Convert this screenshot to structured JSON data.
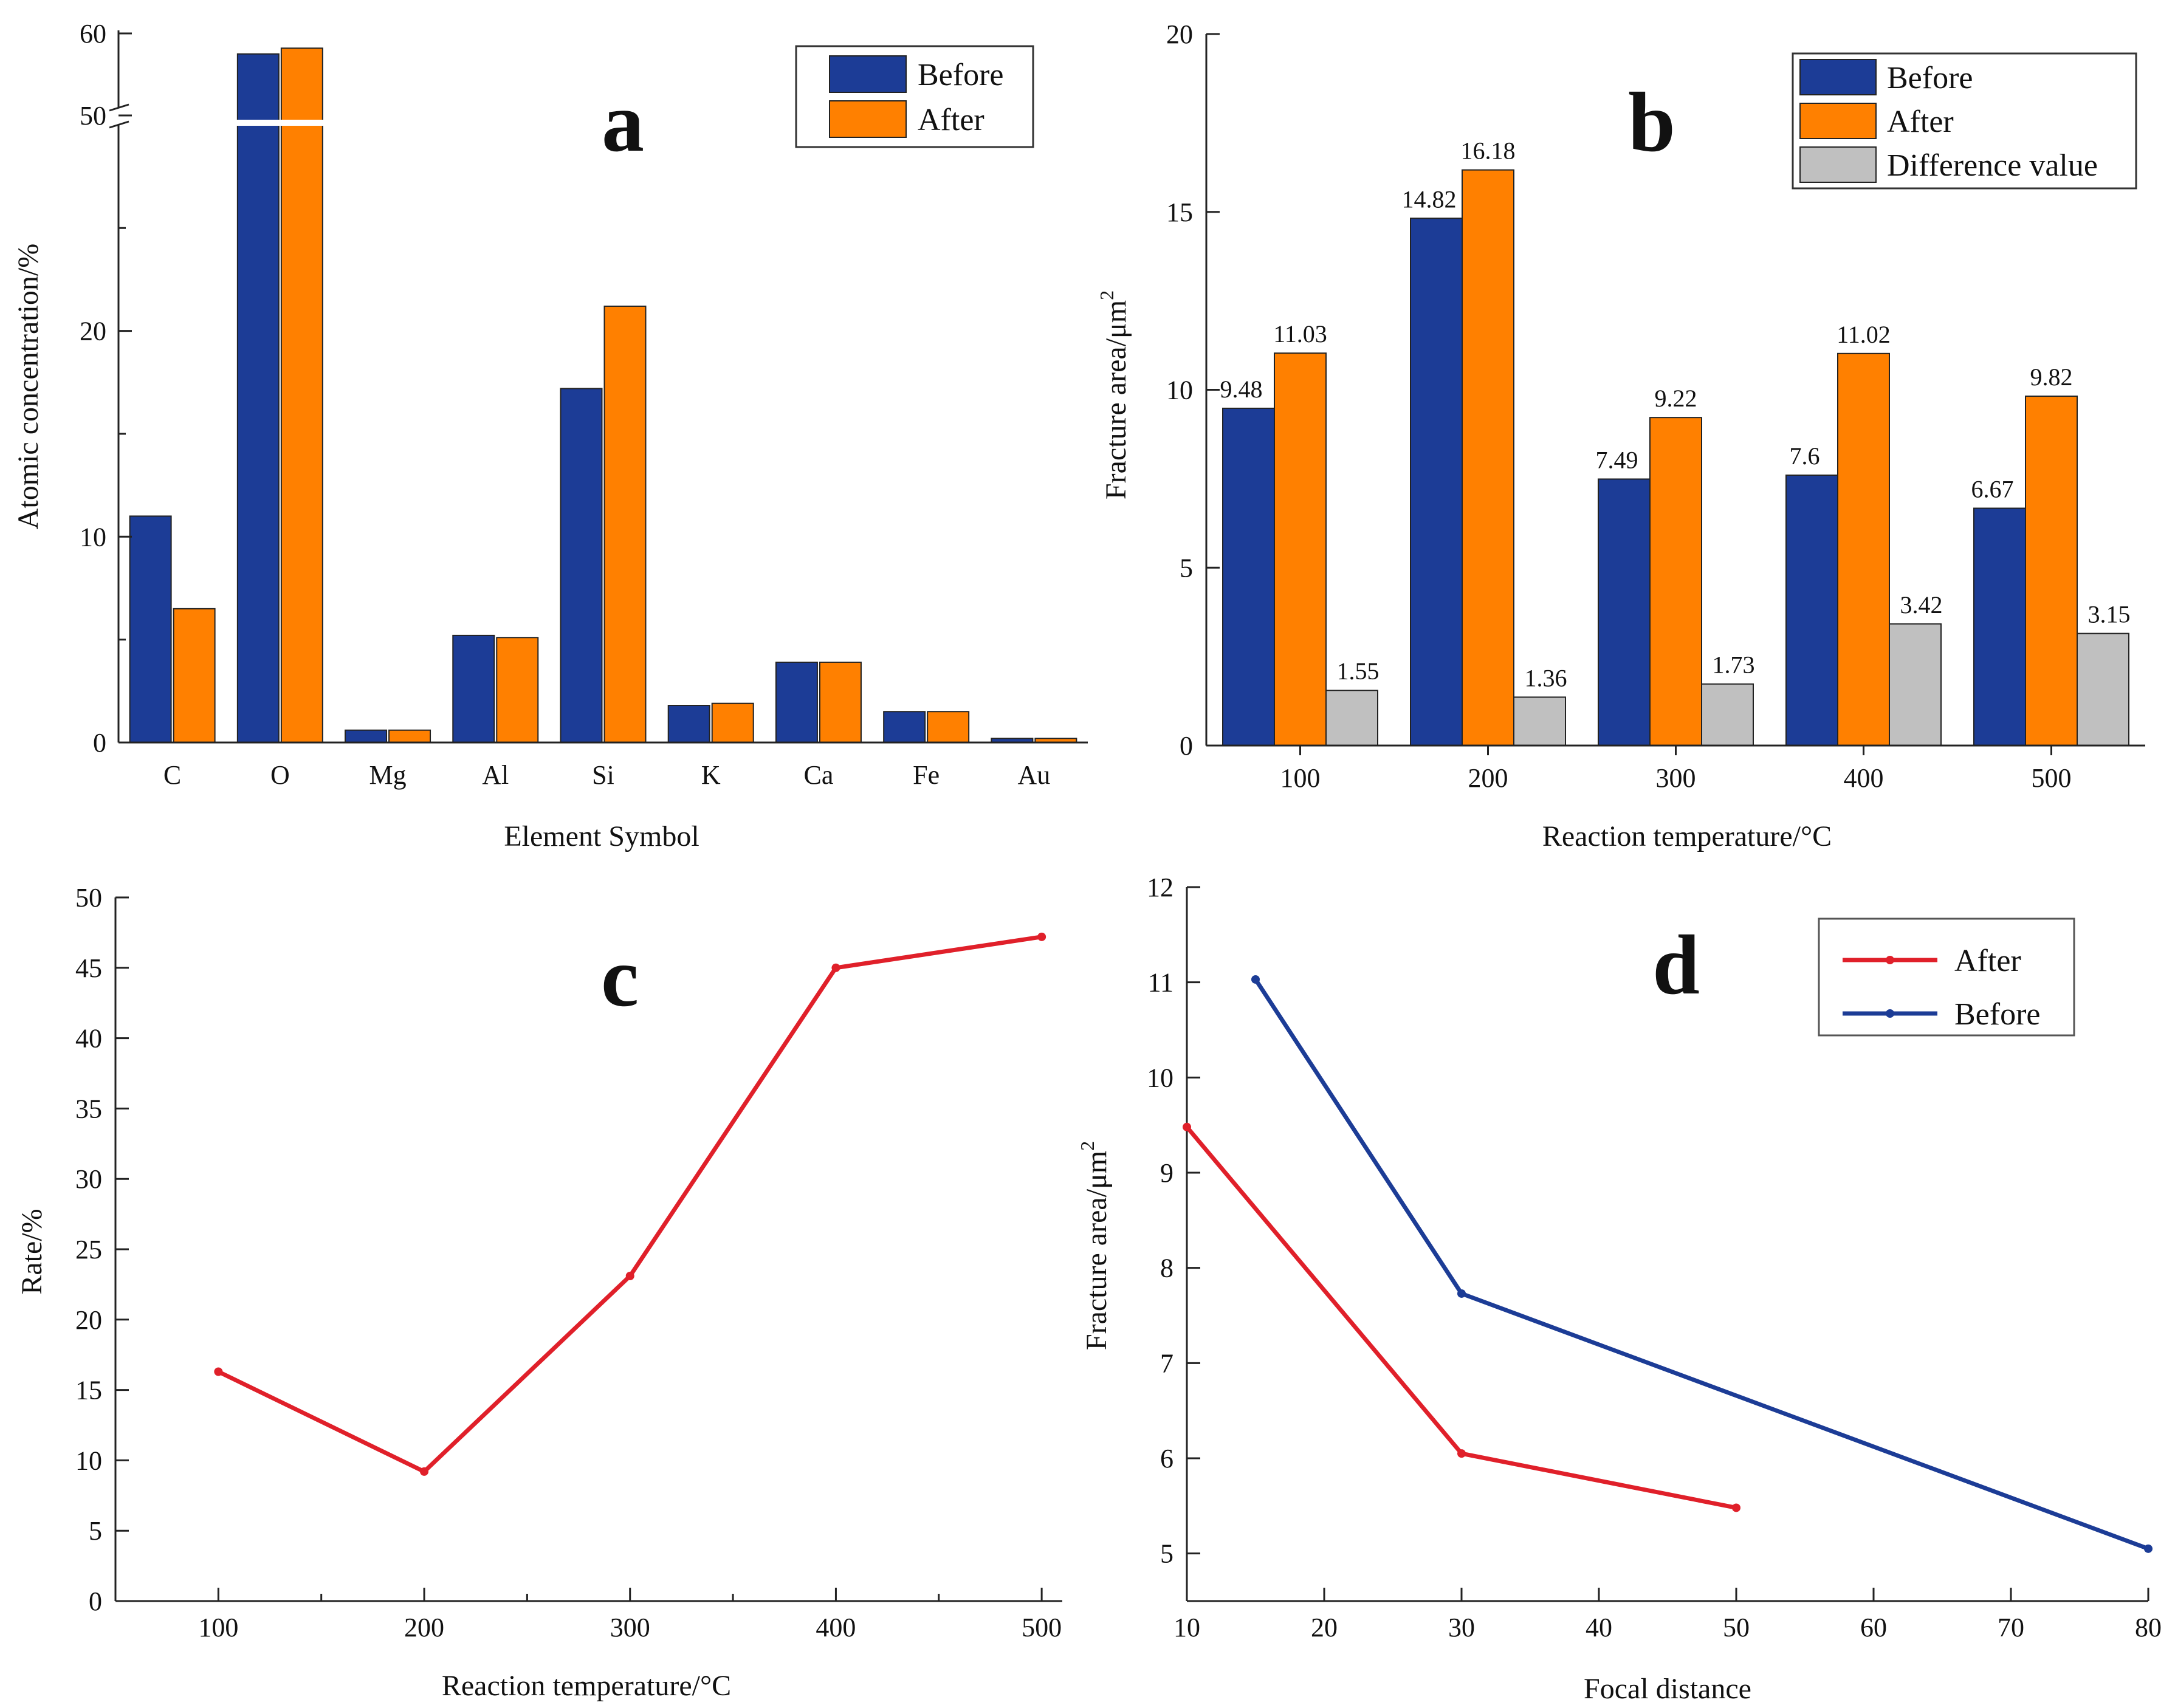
{
  "colors": {
    "before": "#1c3c96",
    "after": "#ff8000",
    "difference": "#c0c0c0",
    "line_after": "#e0202a",
    "line_before": "#1c3c96"
  },
  "chart_data": [
    {
      "id": "a",
      "panel_label": "a",
      "type": "bar",
      "xlabel": "Element Symbol",
      "ylabel": "Atomic concentration/%",
      "categories": [
        "C",
        "O",
        "Mg",
        "Al",
        "Si",
        "K",
        "Ca",
        "Fe",
        "Au"
      ],
      "series": [
        {
          "name": "Before",
          "values": [
            11.0,
            57.5,
            0.6,
            5.2,
            17.2,
            1.8,
            3.9,
            1.5,
            0.2
          ]
        },
        {
          "name": "After",
          "values": [
            6.5,
            58.2,
            0.6,
            5.1,
            21.2,
            1.9,
            3.9,
            1.5,
            0.2
          ]
        }
      ],
      "y_ticks": [
        "0",
        "10",
        "20",
        "50",
        "60"
      ],
      "axis_break": {
        "lower_range": [
          0,
          30
        ],
        "upper_range": [
          50,
          60
        ]
      },
      "legend": [
        "Before",
        "After"
      ]
    },
    {
      "id": "b",
      "panel_label": "b",
      "type": "bar",
      "xlabel": "Reaction temperature/°C",
      "ylabel": "Fracture area/μm",
      "ylabel_sup": "2",
      "categories": [
        "100",
        "200",
        "300",
        "400",
        "500"
      ],
      "series": [
        {
          "name": "Before",
          "values": [
            9.48,
            14.82,
            7.49,
            7.6,
            6.67
          ],
          "labels": [
            "9.48",
            "14.82",
            "7.49",
            "7.6",
            "6.67"
          ]
        },
        {
          "name": "After",
          "values": [
            11.03,
            16.18,
            9.22,
            11.02,
            9.82
          ],
          "labels": [
            "11.03",
            "16.18",
            "9.22",
            "11.02",
            "9.82"
          ]
        },
        {
          "name": "Difference value",
          "values": [
            1.55,
            1.36,
            1.73,
            3.42,
            3.15
          ],
          "labels": [
            "1.55",
            "1.36",
            "1.73",
            "3.42",
            "3.15"
          ]
        }
      ],
      "ylim": [
        0,
        20
      ],
      "y_ticks": [
        "0",
        "5",
        "10",
        "15",
        "20"
      ],
      "legend": [
        "Before",
        "After",
        "Difference value"
      ]
    },
    {
      "id": "c",
      "panel_label": "c",
      "type": "line",
      "xlabel": "Reaction temperature/°C",
      "ylabel": "Rate/%",
      "x": [
        100,
        200,
        300,
        400,
        500
      ],
      "series": [
        {
          "name": "Rate",
          "values": [
            16.3,
            9.2,
            23.1,
            45.0,
            47.2
          ]
        }
      ],
      "xlim": [
        50,
        510
      ],
      "ylim": [
        0,
        50
      ],
      "x_ticks": [
        "100",
        "200",
        "300",
        "400",
        "500"
      ],
      "y_ticks": [
        "0",
        "5",
        "10",
        "15",
        "20",
        "25",
        "30",
        "35",
        "40",
        "45",
        "50"
      ]
    },
    {
      "id": "d",
      "panel_label": "d",
      "type": "line",
      "xlabel": "Focal distance",
      "ylabel": "Fracture area/μm",
      "ylabel_sup": "2",
      "series": [
        {
          "name": "After",
          "x": [
            10,
            30,
            50
          ],
          "values": [
            9.48,
            6.05,
            5.48
          ]
        },
        {
          "name": "Before",
          "x": [
            15,
            30,
            80
          ],
          "values": [
            11.03,
            7.73,
            5.05
          ]
        }
      ],
      "x_tick_values": [
        10,
        20,
        30,
        40,
        50,
        60,
        70,
        80
      ],
      "x_ticks": [
        "10",
        "20",
        "30",
        "40",
        "50",
        "60",
        "70",
        "80"
      ],
      "y_ticks": [
        "5",
        "6",
        "7",
        "8",
        "9",
        "10",
        "11",
        "12"
      ],
      "ylim": [
        4.5,
        12
      ],
      "legend": [
        "After",
        "Before"
      ]
    }
  ]
}
